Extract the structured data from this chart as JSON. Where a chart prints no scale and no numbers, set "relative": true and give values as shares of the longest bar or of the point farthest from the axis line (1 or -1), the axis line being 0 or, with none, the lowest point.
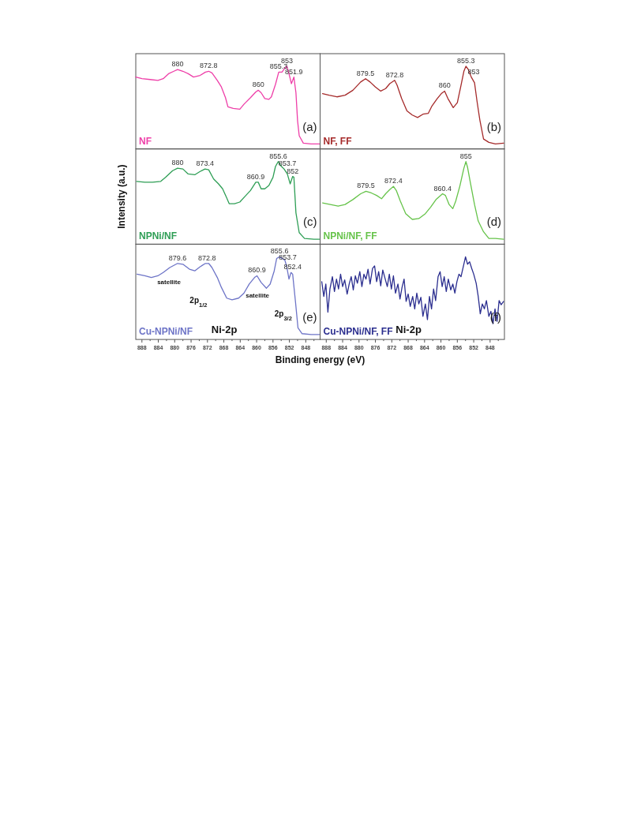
{
  "chart_data": [
    {
      "type": "line",
      "title": "(a)",
      "relative": true,
      "tick_labels": false,
      "xlim": [
        889.5,
        844.5
      ],
      "x": [
        889.5,
        888.0,
        886.0,
        884.1,
        882.8,
        881.5,
        880.2,
        879.3,
        878.0,
        876.7,
        875.4,
        873.8,
        872.5,
        871.7,
        870.9,
        869.6,
        868.6,
        867.6,
        867.0,
        865.7,
        864.1,
        863.1,
        861.5,
        860.2,
        859.6,
        858.9,
        858.0,
        857.0,
        856.4,
        855.4,
        854.6,
        853.8,
        853.1,
        852.6,
        852.2,
        851.5,
        850.9,
        850.4,
        850.0,
        849.6,
        848.6,
        846.7,
        844.7
      ],
      "series": [
        {
          "name": "NF",
          "color": "#ee3fa8",
          "values": [
            0.87,
            0.85,
            0.84,
            0.83,
            0.85,
            0.91,
            0.94,
            0.96,
            0.94,
            0.91,
            0.87,
            0.89,
            0.93,
            0.94,
            0.92,
            0.83,
            0.75,
            0.62,
            0.51,
            0.49,
            0.48,
            0.54,
            0.62,
            0.69,
            0.71,
            0.68,
            0.61,
            0.6,
            0.63,
            0.78,
            0.93,
            0.93,
            0.98,
            1,
            0.93,
            0.79,
            0.87,
            0.68,
            0.34,
            0.16,
            0.07,
            0.06,
            0.06
          ]
        }
      ],
      "annotations": [
        {
          "text": "880",
          "x": 879.3,
          "y": 0.96
        },
        {
          "text": "872.8",
          "x": 871.7,
          "y": 0.94
        },
        {
          "text": "860",
          "x": 859.6,
          "y": 0.71
        },
        {
          "text": "855.3",
          "x": 854.6,
          "y": 0.93
        },
        {
          "text": "853",
          "x": 852.6,
          "y": 1
        },
        {
          "text": "851.9",
          "x": 850.9,
          "y": 0.87
        }
      ]
    },
    {
      "type": "line",
      "title": "(b)",
      "relative": true,
      "tick_labels": false,
      "xlim": [
        889.5,
        844.5
      ],
      "x": [
        888.9,
        887.3,
        885.4,
        883.4,
        881.5,
        879.6,
        878.4,
        877.3,
        876.0,
        874.7,
        873.5,
        872.5,
        871.3,
        870.7,
        869.6,
        868.3,
        867.0,
        865.7,
        864.4,
        863.1,
        862.2,
        860.9,
        859.9,
        859.1,
        858.3,
        857.0,
        856.0,
        855.1,
        854.4,
        853.9,
        853.3,
        852.6,
        851.8,
        851.2,
        850.5,
        849.6,
        848.3,
        846.7,
        844.7
      ],
      "series": [
        {
          "name": "NF, FF",
          "color": "#a52a2a",
          "values": [
            0.67,
            0.65,
            0.63,
            0.65,
            0.71,
            0.81,
            0.85,
            0.81,
            0.75,
            0.7,
            0.73,
            0.79,
            0.83,
            0.77,
            0.61,
            0.46,
            0.41,
            0.38,
            0.42,
            0.43,
            0.52,
            0.61,
            0.67,
            0.7,
            0.61,
            0.5,
            0.56,
            0.77,
            0.94,
            1,
            0.96,
            0.87,
            0.8,
            0.58,
            0.35,
            0.12,
            0.08,
            0.06,
            0.07
          ]
        }
      ],
      "annotations": [
        {
          "text": "879.5",
          "x": 878.4,
          "y": 0.85
        },
        {
          "text": "872.8",
          "x": 871.3,
          "y": 0.83
        },
        {
          "text": "860",
          "x": 859.1,
          "y": 0.7
        },
        {
          "text": "855.3",
          "x": 853.9,
          "y": 1
        },
        {
          "text": "853",
          "x": 852.0,
          "y": 0.87
        }
      ]
    },
    {
      "type": "line",
      "title": "(c)",
      "ylabel": "Intensity (a.u.)",
      "relative": true,
      "tick_labels": false,
      "xlim": [
        889.5,
        844.5
      ],
      "x": [
        889.3,
        887.3,
        885.4,
        883.4,
        882.2,
        880.5,
        879.3,
        878.0,
        876.7,
        875.1,
        873.8,
        872.6,
        871.7,
        870.5,
        869.3,
        868.3,
        867.3,
        866.7,
        865.4,
        864.1,
        862.8,
        861.5,
        860.2,
        859.6,
        858.9,
        858.0,
        857.0,
        856.0,
        855.4,
        854.7,
        854.1,
        853.3,
        852.5,
        851.8,
        851.2,
        850.9,
        850.4,
        849.6,
        848.3,
        846.0,
        844.7
      ],
      "series": [
        {
          "name": "NPNi/NF",
          "color": "#2e9e55",
          "values": [
            0.76,
            0.75,
            0.75,
            0.76,
            0.81,
            0.89,
            0.92,
            0.91,
            0.85,
            0.84,
            0.88,
            0.91,
            0.9,
            0.79,
            0.73,
            0.67,
            0.56,
            0.49,
            0.49,
            0.51,
            0.58,
            0.65,
            0.75,
            0.75,
            0.67,
            0.67,
            0.71,
            0.81,
            0.94,
            1,
            0.95,
            0.91,
            0.85,
            0.73,
            0.82,
            0.81,
            0.38,
            0.14,
            0.07,
            0.06,
            0.06
          ]
        }
      ],
      "annotations": [
        {
          "text": "880",
          "x": 879.3,
          "y": 0.92
        },
        {
          "text": "873.4",
          "x": 872.6,
          "y": 0.91
        },
        {
          "text": "860.9",
          "x": 860.2,
          "y": 0.75
        },
        {
          "text": "855.6",
          "x": 854.7,
          "y": 1
        },
        {
          "text": "853.7",
          "x": 852.5,
          "y": 0.91
        },
        {
          "text": "852",
          "x": 851.2,
          "y": 0.82
        }
      ]
    },
    {
      "type": "line",
      "title": "(d)",
      "relative": true,
      "tick_labels": false,
      "xlim": [
        889.5,
        844.5
      ],
      "x": [
        888.9,
        887.0,
        885.1,
        883.4,
        881.5,
        879.6,
        878.3,
        877.0,
        875.7,
        874.5,
        873.5,
        872.5,
        871.6,
        870.9,
        869.9,
        868.6,
        867.0,
        865.4,
        863.8,
        862.5,
        861.2,
        859.6,
        858.9,
        858.0,
        857.1,
        856.4,
        855.4,
        854.4,
        853.9,
        853.5,
        852.8,
        851.8,
        850.9,
        849.6,
        848.3,
        846.7,
        844.7
      ],
      "series": [
        {
          "name": "NPNi/NF, FF",
          "color": "#66c34a",
          "values": [
            0.5,
            0.48,
            0.46,
            0.48,
            0.54,
            0.61,
            0.64,
            0.62,
            0.59,
            0.55,
            0.61,
            0.66,
            0.7,
            0.65,
            0.52,
            0.37,
            0.3,
            0.31,
            0.37,
            0.45,
            0.54,
            0.61,
            0.59,
            0.48,
            0.43,
            0.52,
            0.7,
            0.92,
            1,
            0.93,
            0.74,
            0.48,
            0.28,
            0.15,
            0.07,
            0.07,
            0.06
          ]
        }
      ],
      "annotations": [
        {
          "text": "879.5",
          "x": 878.3,
          "y": 0.64
        },
        {
          "text": "872.4",
          "x": 871.6,
          "y": 0.7
        },
        {
          "text": "860.4",
          "x": 859.6,
          "y": 0.61
        },
        {
          "text": "855",
          "x": 853.9,
          "y": 1
        }
      ]
    },
    {
      "type": "line",
      "title": "(e)",
      "xlabel": "Binding energy (eV)",
      "relative": true,
      "tick_labels": "x",
      "xlim": [
        889.5,
        844.5
      ],
      "xticks": [
        888,
        {
          "value": 886,
          "label": null
        },
        884,
        {
          "value": 882,
          "label": null
        },
        880,
        {
          "value": 878,
          "label": null
        },
        876,
        {
          "value": 874,
          "label": null
        },
        872,
        {
          "value": 870,
          "label": null
        },
        868,
        {
          "value": 866,
          "label": null
        },
        864,
        {
          "value": 862,
          "label": null
        },
        860,
        {
          "value": 858,
          "label": null
        },
        856,
        {
          "value": 854,
          "label": null
        },
        852,
        {
          "value": 850,
          "label": null
        },
        848,
        {
          "value": 846,
          "label": null
        }
      ],
      "x": [
        889.2,
        887.3,
        885.7,
        884.1,
        882.8,
        881.2,
        879.3,
        878.0,
        876.4,
        875.1,
        873.8,
        872.5,
        871.7,
        870.9,
        869.6,
        868.6,
        867.3,
        866.0,
        864.4,
        863.1,
        861.8,
        860.5,
        859.9,
        858.9,
        857.6,
        856.7,
        855.7,
        855.1,
        854.4,
        853.1,
        852.6,
        852.1,
        851.6,
        851.2,
        850.5,
        849.9,
        848.9,
        846.7,
        844.7
      ],
      "series": [
        {
          "name": "Cu-NPNi/NF",
          "color": "#6d74c7",
          "values": [
            0.79,
            0.77,
            0.75,
            0.77,
            0.81,
            0.87,
            0.92,
            0.91,
            0.85,
            0.83,
            0.88,
            0.92,
            0.92,
            0.87,
            0.75,
            0.63,
            0.5,
            0.48,
            0.5,
            0.56,
            0.67,
            0.75,
            0.77,
            0.69,
            0.62,
            0.67,
            0.83,
            0.98,
            1,
            0.96,
            0.87,
            0.73,
            0.81,
            0.79,
            0.45,
            0.14,
            0.07,
            0.06,
            0.06
          ]
        }
      ],
      "annotations": [
        {
          "text": "879.6",
          "x": 879.3,
          "y": 0.92
        },
        {
          "text": "872.8",
          "x": 872.1,
          "y": 0.92
        },
        {
          "text": "860.9",
          "x": 859.9,
          "y": 0.77
        },
        {
          "text": "855.6",
          "x": 854.4,
          "y": 1
        },
        {
          "text": "853.7",
          "x": 852.4,
          "y": 0.93
        },
        {
          "text": "852.4",
          "x": 851.2,
          "y": 0.81
        },
        "satellite",
        "satellite",
        "2p$_{1/2}$",
        "2p$_{3/2}$",
        "Ni-2p"
      ]
    },
    {
      "type": "line",
      "title": "(f)",
      "relative": true,
      "tick_labels": "x",
      "xlim": [
        889.5,
        844.5
      ],
      "xticks": [
        888,
        {
          "value": 886,
          "label": null
        },
        884,
        {
          "value": 882,
          "label": null
        },
        880,
        {
          "value": 878,
          "label": null
        },
        876,
        {
          "value": 874,
          "label": null
        },
        872,
        {
          "value": 870,
          "label": null
        },
        868,
        {
          "value": 866,
          "label": null
        },
        864,
        {
          "value": 862,
          "label": null
        },
        860,
        {
          "value": 858,
          "label": null
        },
        856,
        {
          "value": 854,
          "label": null
        },
        852,
        {
          "value": 850,
          "label": null
        },
        848,
        {
          "value": 846,
          "label": null
        }
      ],
      "x": [
        889.1,
        888.6,
        888.1,
        887.6,
        887.1,
        886.5,
        886.0,
        885.5,
        885.0,
        884.5,
        884.0,
        883.5,
        882.9,
        882.4,
        881.9,
        881.4,
        880.9,
        880.4,
        879.8,
        879.3,
        878.8,
        878.3,
        877.8,
        877.3,
        876.7,
        876.2,
        875.7,
        875.2,
        874.7,
        874.2,
        873.6,
        873.1,
        872.6,
        872.1,
        871.6,
        871.1,
        870.5,
        870.0,
        869.5,
        869.0,
        868.5,
        868.0,
        867.5,
        866.9,
        866.4,
        865.9,
        865.4,
        864.9,
        864.4,
        863.8,
        863.3,
        862.8,
        862.3,
        861.8,
        861.3,
        860.7,
        860.2,
        859.7,
        859.2,
        858.7,
        858.2,
        857.6,
        857.1,
        856.6,
        856.1,
        855.6,
        855.1,
        854.5,
        854.0,
        853.5,
        853.0,
        852.5,
        852.0,
        851.4,
        850.9,
        850.4,
        849.9,
        849.4,
        848.9,
        848.3,
        847.8,
        847.3,
        846.8,
        846.3,
        845.8,
        845.3,
        844.7
      ],
      "series": [
        {
          "name": "Cu-NPNi/NF, FF",
          "color": "#2b2e8f",
          "values": [
            0.7,
            0.52,
            0.67,
            0.33,
            0.61,
            0.76,
            0.58,
            0.73,
            0.61,
            0.79,
            0.64,
            0.72,
            0.55,
            0.67,
            0.76,
            0.6,
            0.77,
            0.68,
            0.82,
            0.64,
            0.79,
            0.73,
            0.85,
            0.67,
            0.86,
            0.89,
            0.7,
            0.82,
            0.65,
            0.84,
            0.73,
            0.64,
            0.79,
            0.61,
            0.77,
            0.56,
            0.67,
            0.49,
            0.63,
            0.73,
            0.46,
            0.55,
            0.4,
            0.52,
            0.37,
            0.56,
            0.43,
            0.51,
            0.28,
            0.43,
            0.24,
            0.52,
            0.37,
            0.61,
            0.47,
            0.76,
            0.82,
            0.64,
            0.76,
            0.58,
            0.73,
            0.6,
            0.67,
            0.56,
            0.7,
            0.79,
            0.76,
            0.89,
            1,
            0.91,
            0.94,
            0.86,
            0.79,
            0.68,
            0.52,
            0.31,
            0.43,
            0.37,
            0.47,
            0.28,
            0.34,
            0.19,
            0.37,
            0.22,
            0.47,
            0.42,
            0.46
          ]
        }
      ],
      "annotations": [
        "Ni-2p"
      ]
    }
  ]
}
